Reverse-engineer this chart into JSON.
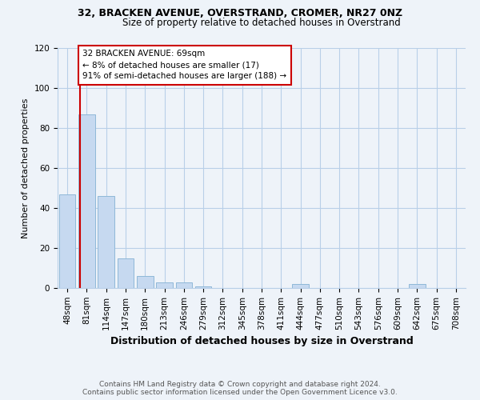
{
  "title": "32, BRACKEN AVENUE, OVERSTRAND, CROMER, NR27 0NZ",
  "subtitle": "Size of property relative to detached houses in Overstrand",
  "xlabel": "Distribution of detached houses by size in Overstrand",
  "ylabel": "Number of detached properties",
  "categories": [
    "48sqm",
    "81sqm",
    "114sqm",
    "147sqm",
    "180sqm",
    "213sqm",
    "246sqm",
    "279sqm",
    "312sqm",
    "345sqm",
    "378sqm",
    "411sqm",
    "444sqm",
    "477sqm",
    "510sqm",
    "543sqm",
    "576sqm",
    "609sqm",
    "642sqm",
    "675sqm",
    "708sqm"
  ],
  "values": [
    47,
    87,
    46,
    15,
    6,
    3,
    3,
    1,
    0,
    0,
    0,
    0,
    2,
    0,
    0,
    0,
    0,
    0,
    2,
    0,
    0
  ],
  "bar_color": "#c6d9f0",
  "bar_edge_color": "#8fb8d8",
  "marker_label": "32 BRACKEN AVENUE: 69sqm",
  "annotation_line1": "← 8% of detached houses are smaller (17)",
  "annotation_line2": "91% of semi-detached houses are larger (188) →",
  "vline_color": "#cc0000",
  "vline_x_index": 0.636,
  "ylim": [
    0,
    120
  ],
  "yticks": [
    0,
    20,
    40,
    60,
    80,
    100,
    120
  ],
  "annotation_box_color": "#ffffff",
  "annotation_box_edge": "#cc0000",
  "footer1": "Contains HM Land Registry data © Crown copyright and database right 2024.",
  "footer2": "Contains public sector information licensed under the Open Government Licence v3.0.",
  "bg_color": "#eef3f9",
  "grid_color": "#b8cfe8",
  "title_fontsize": 9,
  "subtitle_fontsize": 8.5,
  "xlabel_fontsize": 9,
  "ylabel_fontsize": 8,
  "tick_fontsize": 7.5,
  "footer_fontsize": 6.5
}
